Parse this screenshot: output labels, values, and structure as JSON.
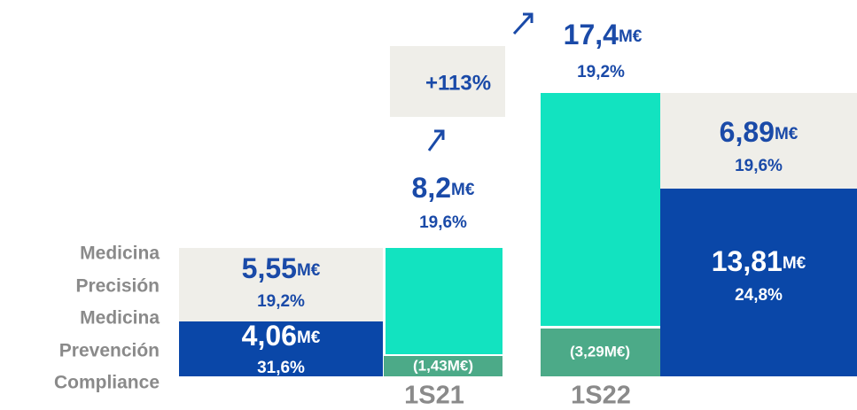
{
  "legend": {
    "precision": [
      "Medicina",
      "Precisión"
    ],
    "prevention": [
      "Medicina",
      "Prevención"
    ],
    "compliance": [
      "Compliance"
    ]
  },
  "periods": [
    "1S21",
    "1S22"
  ],
  "s1_21": {
    "precision": {
      "amount": "5,55",
      "unit": "M€",
      "margin": "19,2%"
    },
    "prevention": {
      "amount": "4,06",
      "unit": "M€",
      "margin": "31,6%"
    },
    "total": {
      "amount": "8,2",
      "unit": "M€",
      "margin": "19,6%"
    },
    "compliance": "(1,43M€)"
  },
  "growth": "+113%",
  "s1_22": {
    "total": {
      "amount": "17,4",
      "unit": "M€",
      "margin": "19,2%"
    },
    "compliance": "(3,29M€)",
    "precision": {
      "amount": "6,89",
      "unit": "M€",
      "margin": "19,6%"
    },
    "prevention": {
      "amount": "13,81",
      "unit": "M€",
      "margin": "24,8%"
    }
  }
}
